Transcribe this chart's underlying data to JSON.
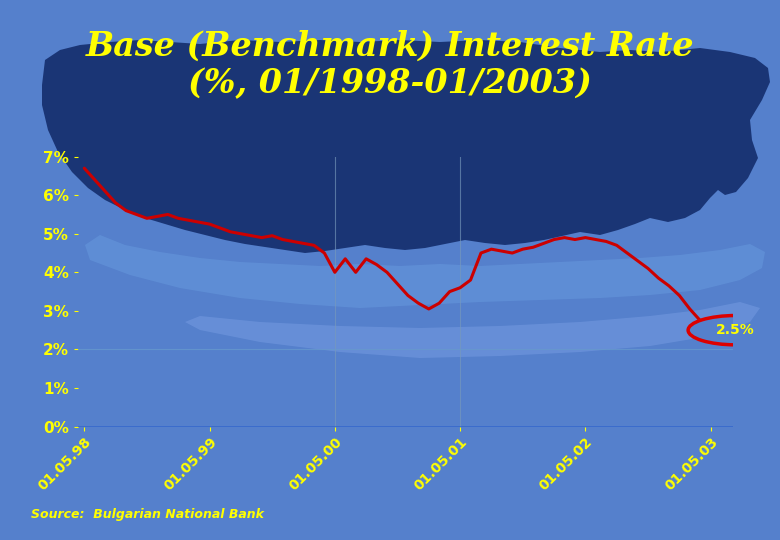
{
  "title_line1": "Base (Benchmark) Interest Rate",
  "title_line2": "(%, 01/1998-01/2003)",
  "title_color": "#FFFF00",
  "title_fontsize": 24,
  "bg_color": "#5580CC",
  "map_dark_color": "#1a3575",
  "map_light_color": "#7aaae8",
  "source_text": "Source:  Bulgarian National Bank",
  "source_color": "#FFFF00",
  "ytick_color": "#FFFF00",
  "xtick_color": "#FFFF00",
  "line_color": "#CC0000",
  "line_width": 2.2,
  "hline0_color": "#3366CC",
  "hline2_color": "#6699CC",
  "annotation_text": "2.5%",
  "annotation_color": "#FFFF00",
  "circle_color": "#DD0000",
  "vgrid_color": "#7799BB",
  "x_vals": [
    0,
    1,
    2,
    3,
    4,
    5,
    6,
    7,
    8,
    9,
    10,
    11,
    12,
    13,
    14,
    15,
    16,
    17,
    18,
    19,
    20,
    21,
    22,
    23,
    24,
    25,
    26,
    27,
    28,
    29,
    30,
    31,
    32,
    33,
    34,
    35,
    36,
    37,
    38,
    39,
    40,
    41,
    42,
    43,
    44,
    45,
    46,
    47,
    48,
    49,
    50,
    51,
    52,
    53,
    54,
    55,
    56,
    57,
    58,
    59,
    60
  ],
  "y_vals": [
    6.7,
    6.4,
    6.1,
    5.8,
    5.6,
    5.5,
    5.4,
    5.45,
    5.5,
    5.4,
    5.35,
    5.3,
    5.25,
    5.15,
    5.05,
    5.0,
    4.95,
    4.9,
    4.95,
    4.85,
    4.8,
    4.75,
    4.7,
    4.5,
    4.0,
    4.35,
    4.0,
    4.35,
    4.2,
    4.0,
    3.7,
    3.4,
    3.2,
    3.05,
    3.2,
    3.5,
    3.6,
    3.8,
    4.5,
    4.6,
    4.55,
    4.5,
    4.6,
    4.65,
    4.75,
    4.85,
    4.9,
    4.85,
    4.9,
    4.85,
    4.8,
    4.7,
    4.5,
    4.3,
    4.1,
    3.85,
    3.65,
    3.4,
    3.05,
    2.75,
    2.5
  ]
}
